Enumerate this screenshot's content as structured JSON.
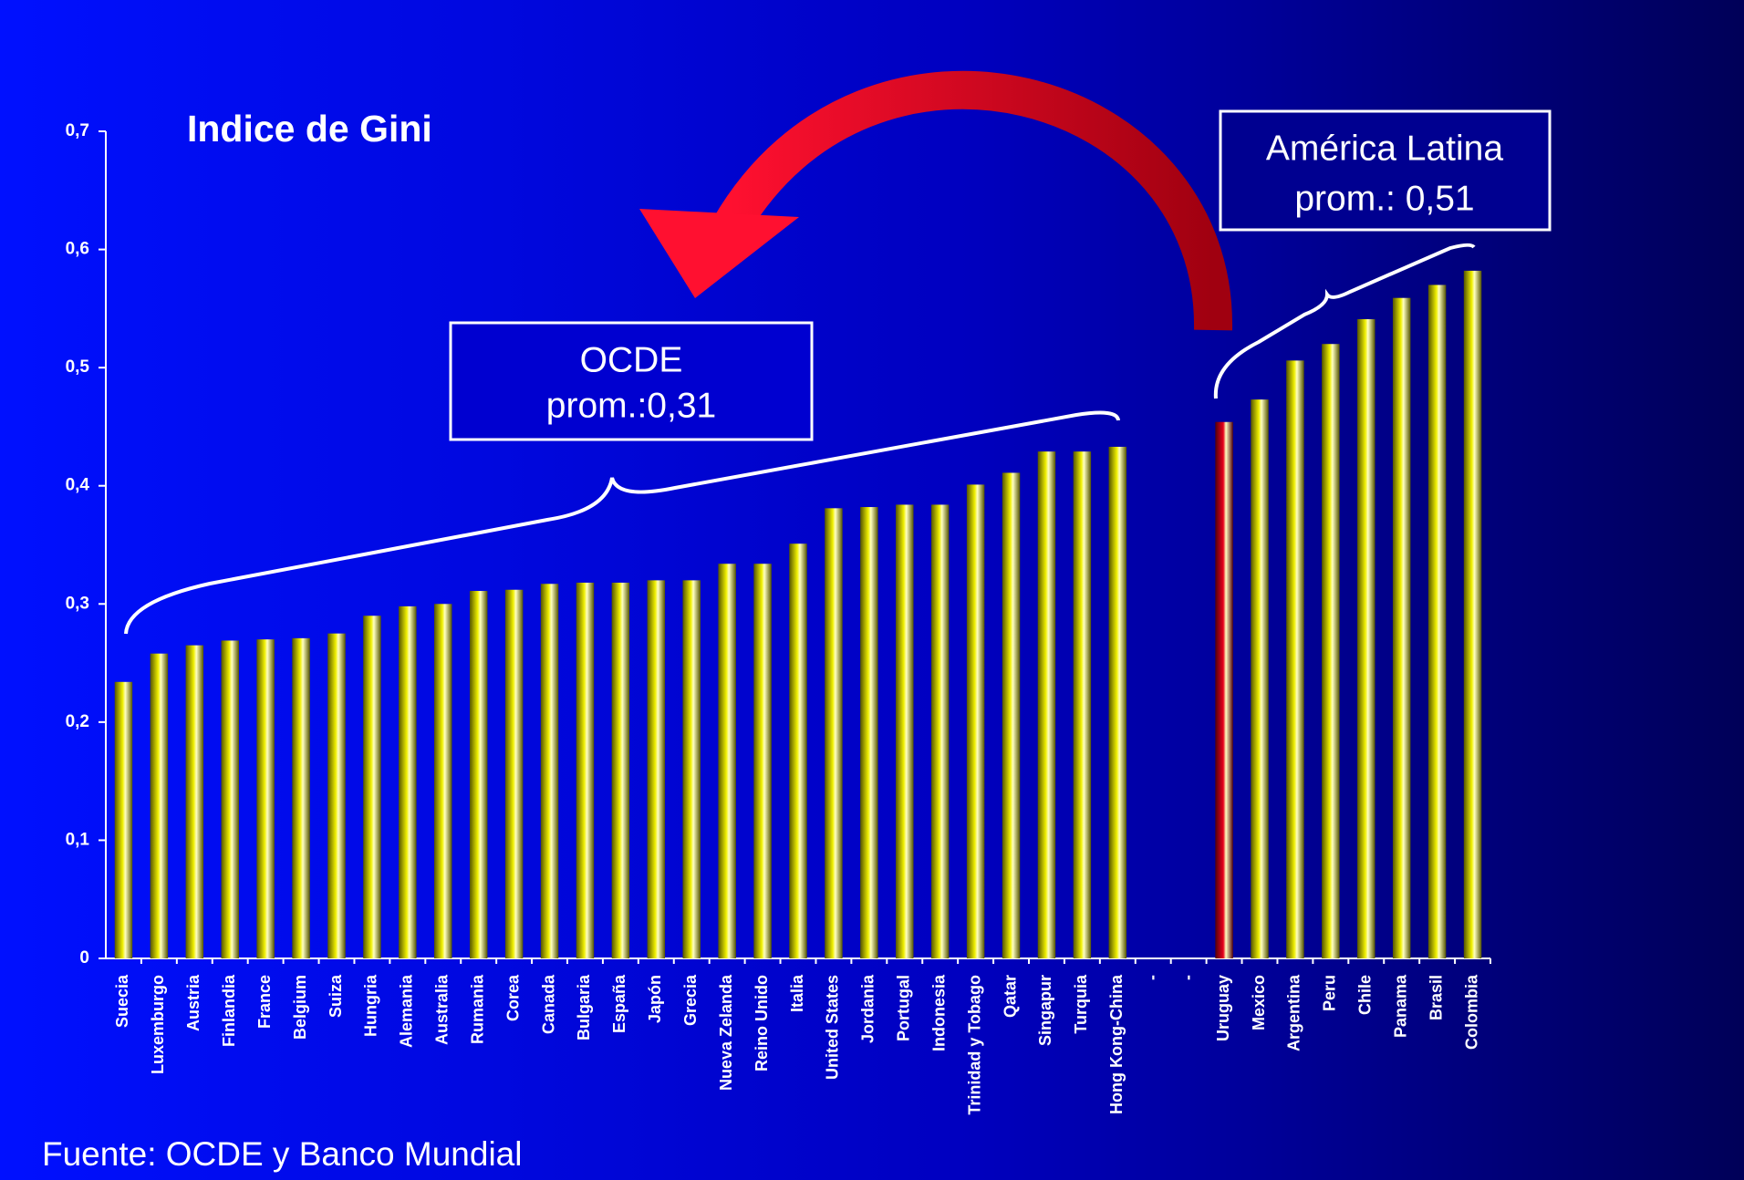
{
  "chart_data": {
    "type": "bar",
    "title": "Indice de Gini",
    "categories": [
      "Suecia",
      "Luxemburgo",
      "Austria",
      "Finlandia",
      "France",
      "Belgium",
      "Suiza",
      "Hungria",
      "Alemania",
      "Australia",
      "Rumania",
      "Corea",
      "Canada",
      "Bulgaria",
      "España",
      "Japón",
      "Grecia",
      "Nueva Zelanda",
      "Reino Unido",
      "Italia",
      "United States",
      "Jordania",
      "Portugal",
      "Indonesia",
      "Trinidad y Tobago",
      "Qatar",
      "Singapur",
      "Turquia",
      "Hong Kong-China",
      "-",
      "-",
      "Uruguay",
      "Mexico",
      "Argentina",
      "Peru",
      "Chile",
      "Panama",
      "Brasil",
      "Colombia"
    ],
    "values": [
      0.234,
      0.258,
      0.265,
      0.269,
      0.27,
      0.271,
      0.275,
      0.29,
      0.298,
      0.3,
      0.311,
      0.312,
      0.317,
      0.318,
      0.318,
      0.32,
      0.32,
      0.334,
      0.334,
      0.351,
      0.381,
      0.382,
      0.384,
      0.384,
      0.401,
      0.411,
      0.429,
      0.429,
      0.433,
      null,
      null,
      0.454,
      0.473,
      0.506,
      0.52,
      0.541,
      0.559,
      0.57,
      0.582
    ],
    "color": "#f0f000",
    "highlight_colors": {
      "31": "#e8001c"
    },
    "ylim": [
      0,
      0.7
    ],
    "yticks": [
      0,
      {
        "value": 0.1,
        "label": "0,1"
      },
      {
        "value": 0.2,
        "label": "0,2"
      },
      {
        "value": 0.3,
        "label": "0,3"
      },
      {
        "value": 0.4,
        "label": "0,4"
      },
      {
        "value": 0.5,
        "label": "0,5"
      },
      {
        "value": 0.6,
        "label": "0,6"
      },
      {
        "value": 0.7,
        "label": "0,7"
      }
    ],
    "grid": false,
    "annotations": [
      {
        "lines": [
          "OCDE",
          "prom.:0,31"
        ]
      },
      {
        "lines": [
          "América Latina",
          "prom.: 0,51"
        ]
      }
    ],
    "source": "Fuente: OCDE y Banco Mundial"
  }
}
